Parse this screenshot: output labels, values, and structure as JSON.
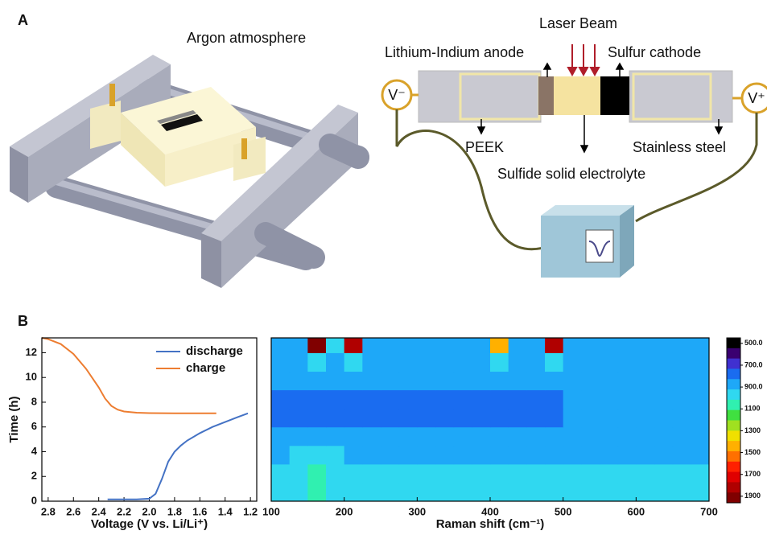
{
  "panels": {
    "a": "A",
    "b": "B"
  },
  "diagram": {
    "argon": "Argon atmosphere",
    "laser": "Laser Beam",
    "anode": "Lithium-Indium anode",
    "cathode": "Sulfur cathode",
    "v_minus": "V⁻",
    "v_plus": "V⁺",
    "peek": "PEEK",
    "steel": "Stainless steel",
    "electrolyte": "Sulfide solid electrolyte"
  },
  "chart_data": [
    {
      "type": "line",
      "xlabel": "Voltage (V vs. Li/Li⁺)",
      "ylabel": "Time (h)",
      "xlim": [
        2.85,
        1.15
      ],
      "xticks": [
        2.8,
        2.6,
        2.4,
        2.2,
        {
          "value": 2,
          "label": "2.0"
        },
        1.8,
        1.6,
        1.4,
        1.2
      ],
      "ylim": [
        0,
        13.2
      ],
      "yticks": [
        0,
        2,
        4,
        6,
        8,
        10,
        12
      ],
      "legend": "top-right",
      "series": [
        {
          "name": "discharge",
          "color": "#4472c4",
          "x": [
            2.33,
            2.1,
            2.0,
            1.95,
            1.9,
            1.85,
            1.8,
            1.75,
            1.7,
            1.6,
            1.5,
            1.4,
            1.3,
            1.22
          ],
          "values": [
            0.15,
            0.15,
            0.2,
            0.6,
            1.8,
            3.2,
            4.0,
            4.5,
            4.9,
            5.5,
            6.0,
            6.4,
            6.8,
            7.1
          ]
        },
        {
          "name": "charge",
          "color": "#ed7d31",
          "x": [
            2.85,
            2.8,
            2.7,
            2.6,
            2.5,
            2.4,
            2.35,
            2.3,
            2.25,
            2.2,
            2.1,
            2.0,
            1.8,
            1.47
          ],
          "values": [
            13.2,
            13.1,
            12.7,
            11.9,
            10.7,
            9.2,
            8.3,
            7.7,
            7.4,
            7.25,
            7.15,
            7.12,
            7.1,
            7.1
          ]
        }
      ]
    },
    {
      "type": "heatmap",
      "xlabel": "Raman shift (cm⁻¹)",
      "xlim": [
        100,
        700
      ],
      "xticks": [
        100,
        200,
        300,
        400,
        500,
        600,
        700
      ],
      "ylim": [
        0,
        13.2
      ],
      "xbins": [
        100,
        125,
        150,
        175,
        200,
        225,
        250,
        275,
        300,
        325,
        350,
        375,
        400,
        425,
        450,
        475,
        500,
        525,
        550,
        575,
        600,
        625,
        650,
        675,
        700
      ],
      "ybins": [
        0,
        1.5,
        3,
        4.5,
        6,
        7.5,
        9,
        10.5,
        12,
        13.2
      ],
      "z": [
        [
          950,
          950,
          1100,
          1000,
          950,
          950,
          950,
          950,
          950,
          950,
          950,
          950,
          950,
          950,
          950,
          1000,
          950,
          950,
          950,
          950,
          950,
          950,
          950,
          950
        ],
        [
          940,
          940,
          1050,
          980,
          940,
          940,
          940,
          940,
          940,
          940,
          940,
          940,
          940,
          940,
          940,
          940,
          940,
          940,
          940,
          940,
          940,
          940,
          940,
          940
        ],
        [
          900,
          950,
          950,
          950,
          900,
          900,
          900,
          900,
          900,
          900,
          900,
          900,
          900,
          900,
          900,
          900,
          900,
          900,
          900,
          900,
          900,
          900,
          900,
          900
        ],
        [
          890,
          890,
          890,
          890,
          890,
          890,
          890,
          890,
          890,
          890,
          890,
          890,
          890,
          890,
          890,
          890,
          890,
          890,
          850,
          890,
          890,
          850,
          890,
          890
        ],
        [
          820,
          820,
          820,
          820,
          820,
          820,
          820,
          820,
          820,
          820,
          820,
          820,
          820,
          820,
          820,
          820,
          880,
          880,
          880,
          880,
          880,
          880,
          880,
          880
        ],
        [
          820,
          820,
          820,
          820,
          820,
          820,
          820,
          820,
          820,
          820,
          820,
          820,
          820,
          820,
          820,
          820,
          850,
          850,
          850,
          850,
          880,
          880,
          880,
          880
        ],
        [
          880,
          880,
          880,
          880,
          880,
          880,
          880,
          880,
          880,
          880,
          880,
          880,
          880,
          880,
          880,
          880,
          880,
          880,
          880,
          880,
          880,
          880,
          880,
          880
        ],
        [
          900,
          900,
          1000,
          900,
          1000,
          900,
          900,
          900,
          900,
          900,
          900,
          900,
          950,
          900,
          900,
          1000,
          900,
          900,
          900,
          900,
          900,
          900,
          900,
          900
        ],
        [
          900,
          900,
          1900,
          950,
          1800,
          900,
          900,
          900,
          900,
          900,
          900,
          900,
          1400,
          900,
          900,
          1800,
          900,
          900,
          900,
          900,
          900,
          900,
          900,
          900
        ]
      ],
      "clim": [
        450,
        1960
      ],
      "colorbar_ticks": [
        {
          "value": 500,
          "label": "500.0"
        },
        {
          "value": 700,
          "label": "700.0"
        },
        {
          "value": 900,
          "label": "900.0"
        },
        1100,
        1300,
        1500,
        1700,
        1900
      ],
      "colors": [
        "#000000",
        "#3a0070",
        "#4030d0",
        "#1a6cf0",
        "#1ea8f8",
        "#30d8f0",
        "#30f0b0",
        "#40e040",
        "#a0e020",
        "#f0e000",
        "#ffb000",
        "#ff7000",
        "#ff2000",
        "#e00000",
        "#b00000",
        "#800000"
      ]
    }
  ]
}
